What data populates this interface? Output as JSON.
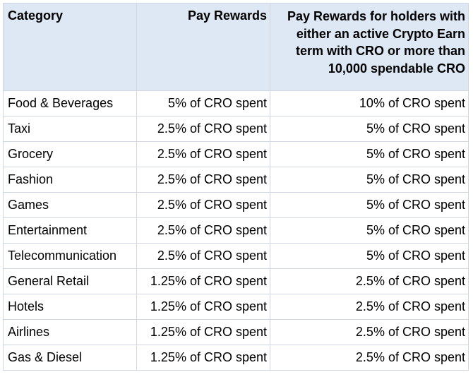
{
  "table": {
    "headers": [
      "Category",
      "Pay Rewards",
      "Pay Rewards for holders with either an active Crypto Earn term with CRO or more than 10,000 spendable CRO"
    ],
    "rows": [
      [
        "Food & Beverages",
        "5% of CRO spent",
        "10% of CRO spent"
      ],
      [
        "Taxi",
        "2.5% of CRO spent",
        "5% of CRO spent"
      ],
      [
        "Grocery",
        "2.5% of CRO spent",
        "5% of CRO spent"
      ],
      [
        "Fashion",
        "2.5% of CRO spent",
        "5% of CRO spent"
      ],
      [
        "Games",
        "2.5% of CRO spent",
        "5% of CRO spent"
      ],
      [
        "Entertainment",
        "2.5% of CRO spent",
        "5% of CRO spent"
      ],
      [
        "Telecommunication",
        "2.5% of CRO spent",
        "5% of CRO spent"
      ],
      [
        "General Retail",
        "1.25% of CRO spent",
        "2.5% of CRO spent"
      ],
      [
        "Hotels",
        "1.25% of CRO spent",
        "2.5% of CRO spent"
      ],
      [
        "Airlines",
        "1.25% of CRO spent",
        "2.5% of CRO spent"
      ],
      [
        "Gas & Diesel",
        "1.25% of CRO spent",
        "2.5% of CRO spent"
      ]
    ]
  },
  "colors": {
    "header_background": "#dde8f4",
    "border": "#d0d7e0"
  }
}
